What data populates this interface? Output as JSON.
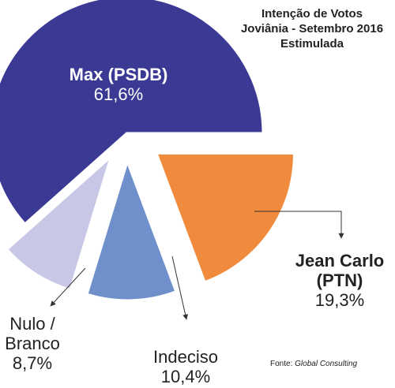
{
  "chart_data": {
    "type": "pie",
    "title": [
      "Intenção de Votos",
      "Joviânia - Setembro 2016",
      "Estimulada"
    ],
    "categories": [
      "Max (PSDB)",
      "Jean Carlo (PTN)",
      "Indeciso",
      "Nulo / Branco"
    ],
    "values": [
      61.6,
      19.3,
      10.4,
      8.7
    ],
    "value_labels": [
      "61,6%",
      "19,3%",
      "10,4%",
      "8,7%"
    ],
    "colors": [
      "#3a3a94",
      "#f08a3c",
      "#7090cc",
      "#c8c8e6"
    ],
    "source_label": "Fonte:",
    "source": "Global Consulting"
  }
}
